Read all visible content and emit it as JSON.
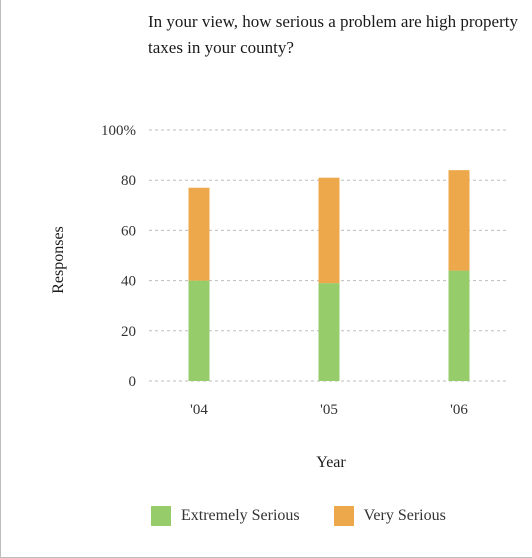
{
  "chart_data": {
    "type": "bar",
    "stacked": true,
    "title": "In your view, how serious a problem are high property taxes in your county?",
    "xlabel": "Year",
    "ylabel": "Responses",
    "categories": [
      "'04",
      "'05",
      "'06"
    ],
    "series": [
      {
        "name": "Extremely Serious",
        "color": "#96cc69",
        "values": [
          40,
          39,
          44
        ]
      },
      {
        "name": "Very Serious",
        "color": "#eea84c",
        "values": [
          37,
          42,
          40
        ]
      }
    ],
    "yticks": [
      "0",
      "20",
      "40",
      "60",
      "80",
      "100%"
    ],
    "ylim": [
      0,
      100
    ],
    "grid": true,
    "legend_position": "bottom"
  }
}
